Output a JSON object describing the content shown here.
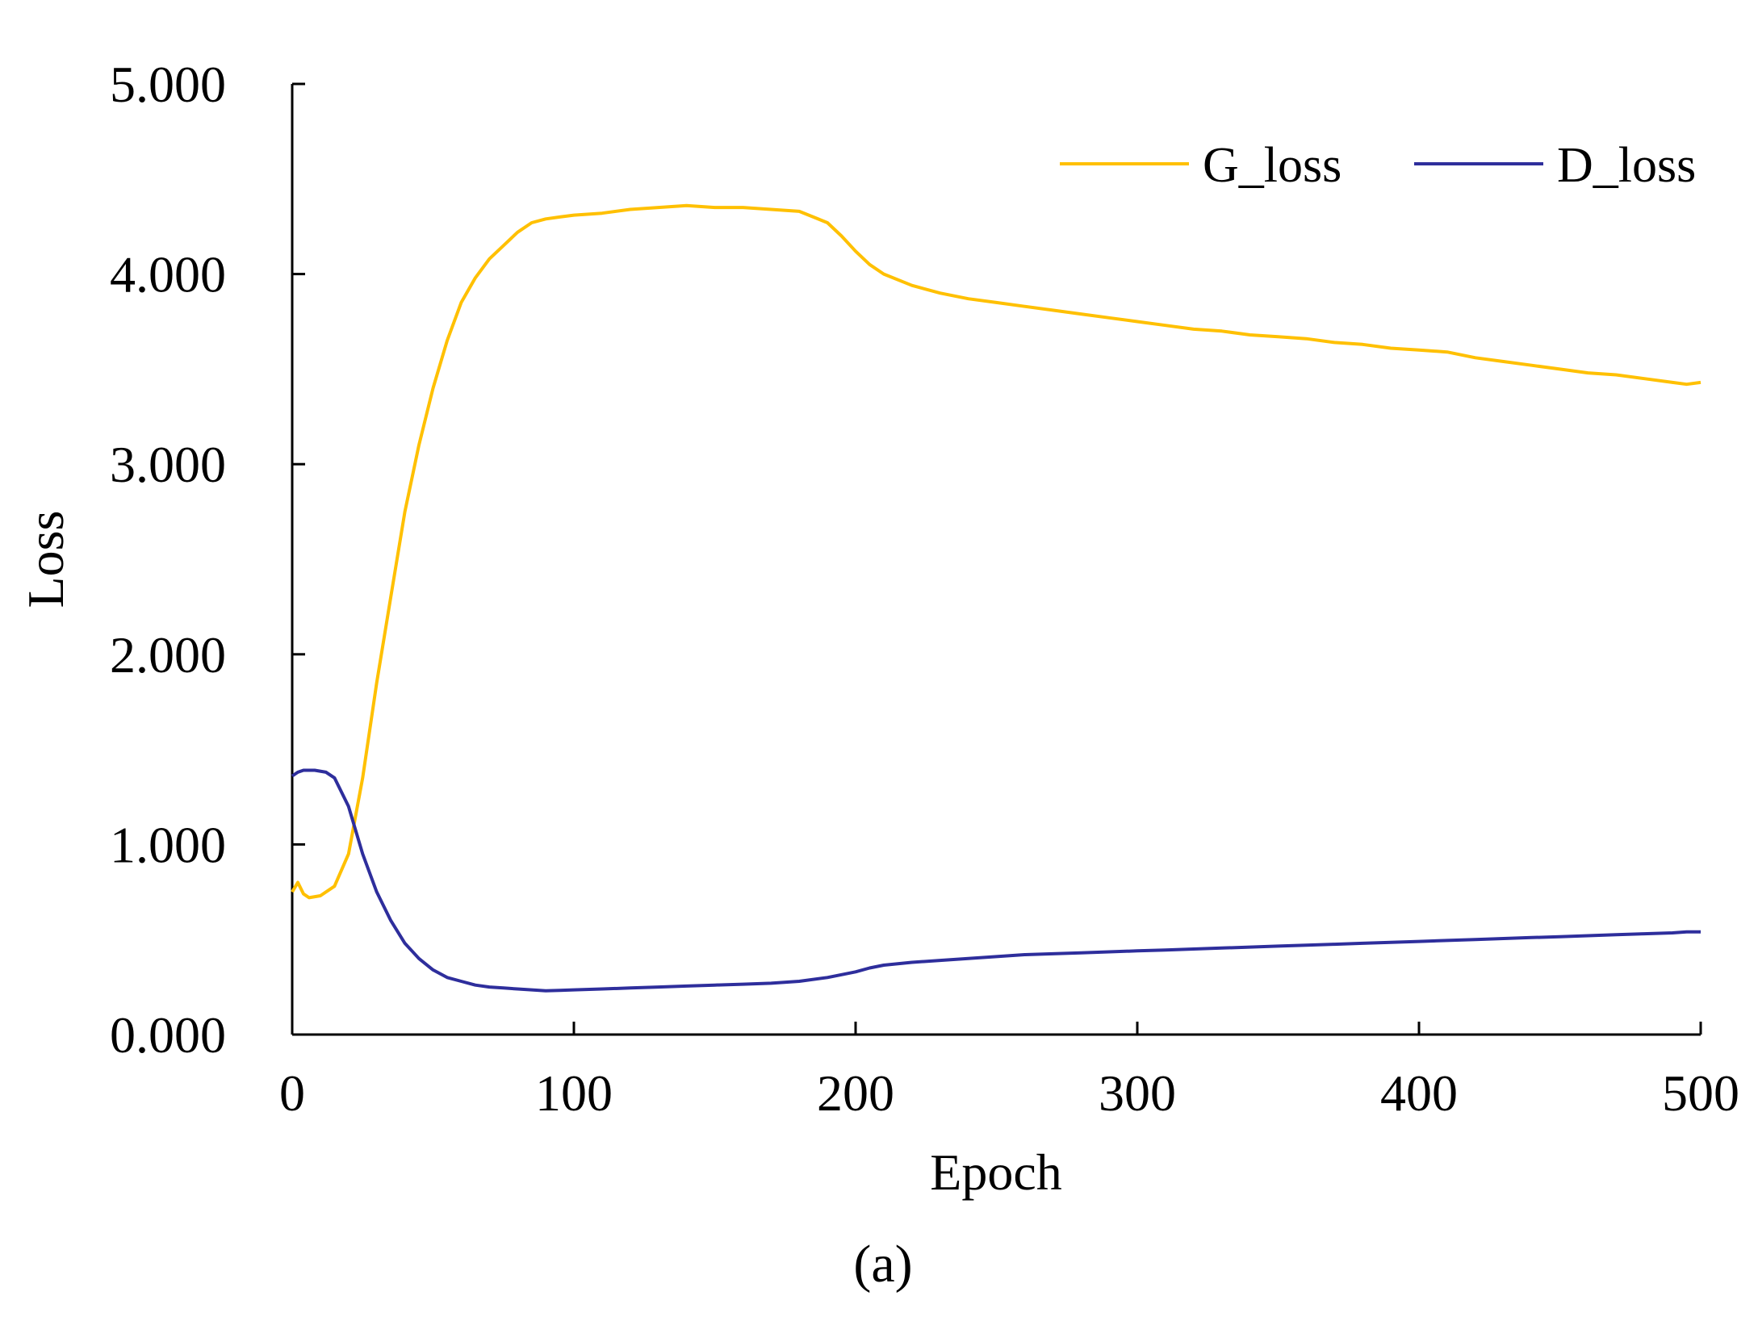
{
  "chart_data": {
    "type": "line",
    "title": "",
    "xlabel": "Epoch",
    "ylabel": "Loss",
    "panel_label": "(a)",
    "xlim": [
      0,
      500
    ],
    "ylim": [
      0,
      5
    ],
    "xticks": [
      0,
      100,
      200,
      300,
      400,
      500
    ],
    "xtick_labels": [
      "0",
      "100",
      "200",
      "300",
      "400",
      "500"
    ],
    "yticks": [
      0,
      1,
      2,
      3,
      4,
      5
    ],
    "ytick_labels": [
      "0.000",
      "1.000",
      "2.000",
      "3.000",
      "4.000",
      "5.000"
    ],
    "grid": false,
    "legend_position": "top-right",
    "series": [
      {
        "name": "G_loss",
        "color": "#FFC000",
        "x": [
          0,
          2,
          4,
          6,
          10,
          15,
          20,
          25,
          30,
          35,
          40,
          45,
          50,
          55,
          60,
          65,
          70,
          75,
          80,
          85,
          90,
          95,
          100,
          110,
          120,
          130,
          140,
          150,
          160,
          170,
          180,
          185,
          190,
          195,
          200,
          205,
          210,
          220,
          230,
          240,
          250,
          260,
          270,
          280,
          290,
          300,
          310,
          320,
          330,
          340,
          350,
          360,
          370,
          380,
          390,
          400,
          410,
          420,
          430,
          440,
          450,
          460,
          470,
          480,
          490,
          495,
          500
        ],
        "values": [
          0.75,
          0.8,
          0.74,
          0.72,
          0.73,
          0.78,
          0.95,
          1.35,
          1.85,
          2.3,
          2.75,
          3.1,
          3.4,
          3.65,
          3.85,
          3.98,
          4.08,
          4.15,
          4.22,
          4.27,
          4.29,
          4.3,
          4.31,
          4.32,
          4.34,
          4.35,
          4.36,
          4.35,
          4.35,
          4.34,
          4.33,
          4.3,
          4.27,
          4.2,
          4.12,
          4.05,
          4.0,
          3.94,
          3.9,
          3.87,
          3.85,
          3.83,
          3.81,
          3.79,
          3.77,
          3.75,
          3.73,
          3.71,
          3.7,
          3.68,
          3.67,
          3.66,
          3.64,
          3.63,
          3.61,
          3.6,
          3.59,
          3.56,
          3.54,
          3.52,
          3.5,
          3.48,
          3.47,
          3.45,
          3.43,
          3.42,
          3.43
        ]
      },
      {
        "name": "D_loss",
        "color": "#2E2E9C",
        "x": [
          0,
          2,
          4,
          8,
          12,
          15,
          20,
          25,
          30,
          35,
          40,
          45,
          50,
          55,
          60,
          65,
          70,
          75,
          80,
          85,
          90,
          95,
          100,
          110,
          120,
          130,
          140,
          150,
          160,
          170,
          180,
          190,
          195,
          200,
          205,
          210,
          220,
          230,
          240,
          250,
          260,
          270,
          280,
          290,
          300,
          310,
          320,
          330,
          340,
          350,
          360,
          370,
          380,
          390,
          400,
          410,
          420,
          430,
          440,
          450,
          460,
          470,
          480,
          490,
          495,
          500
        ],
        "values": [
          1.36,
          1.38,
          1.39,
          1.39,
          1.38,
          1.35,
          1.2,
          0.95,
          0.75,
          0.6,
          0.48,
          0.4,
          0.34,
          0.3,
          0.28,
          0.26,
          0.25,
          0.245,
          0.24,
          0.235,
          0.23,
          0.232,
          0.235,
          0.24,
          0.245,
          0.25,
          0.255,
          0.26,
          0.265,
          0.27,
          0.28,
          0.3,
          0.315,
          0.33,
          0.35,
          0.365,
          0.38,
          0.39,
          0.4,
          0.41,
          0.42,
          0.425,
          0.43,
          0.435,
          0.44,
          0.445,
          0.45,
          0.455,
          0.46,
          0.465,
          0.47,
          0.475,
          0.48,
          0.485,
          0.49,
          0.495,
          0.5,
          0.505,
          0.51,
          0.515,
          0.52,
          0.525,
          0.53,
          0.535,
          0.54,
          0.54
        ]
      }
    ]
  }
}
